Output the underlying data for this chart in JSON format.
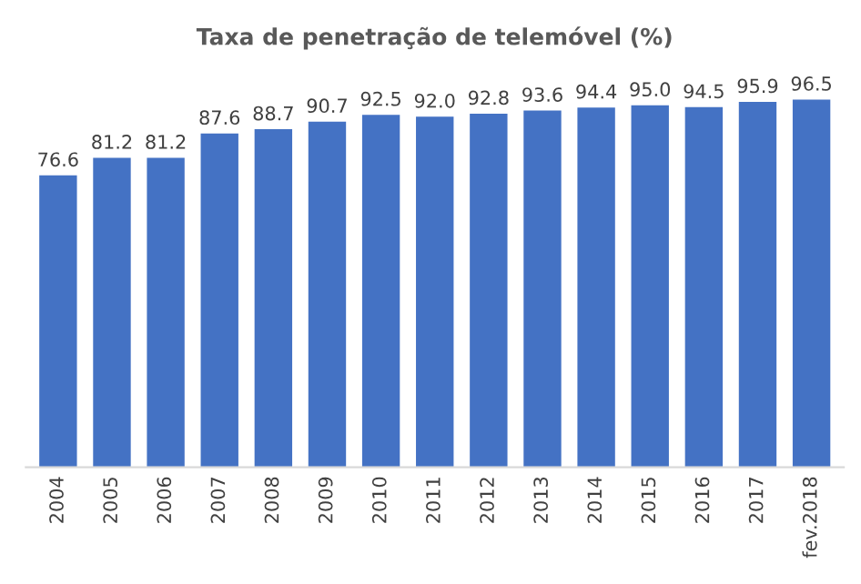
{
  "chart_data": {
    "type": "bar",
    "title": "Taxa de penetração de telemóvel (%)",
    "categories": [
      "2004",
      "2005",
      "2006",
      "2007",
      "2008",
      "2009",
      "2010",
      "2011",
      "2012",
      "2013",
      "2014",
      "2015",
      "2016",
      "2017",
      "fev.2018"
    ],
    "values": [
      76.6,
      81.2,
      81.2,
      87.6,
      88.7,
      90.7,
      92.5,
      92.0,
      92.8,
      93.6,
      94.4,
      95.0,
      94.5,
      95.9,
      96.5
    ],
    "value_labels": [
      "76.6",
      "81.2",
      "81.2",
      "87.6",
      "88.7",
      "90.7",
      "92.5",
      "92.0",
      "92.8",
      "93.6",
      "94.4",
      "95.0",
      "94.5",
      "95.9",
      "96.5"
    ],
    "color": "#4472c4",
    "grid": false,
    "legend": false
  }
}
